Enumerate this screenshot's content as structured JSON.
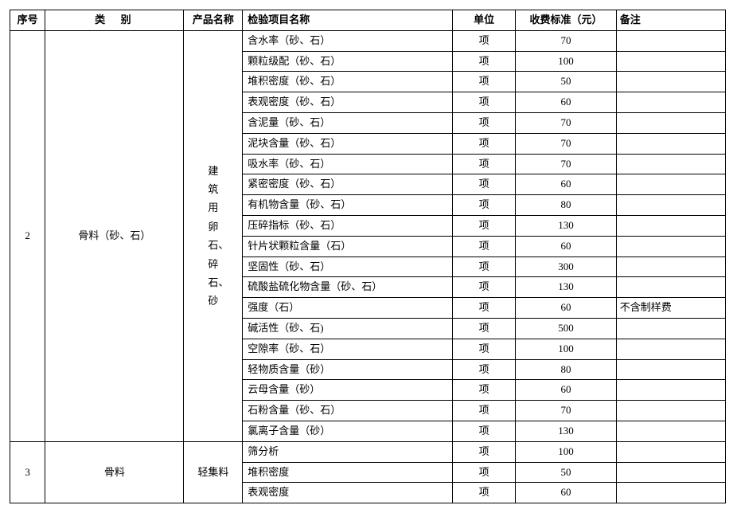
{
  "columns": {
    "seq": "序号",
    "category": "类别",
    "product": "产品名称",
    "item": "检验项目名称",
    "unit": "单位",
    "fee": "收费标准（元）",
    "note": "备注"
  },
  "groups": [
    {
      "seq": "2",
      "category": "骨料（砂、石）",
      "product": "建筑用卵石、碎石、砂",
      "product_vertical": true,
      "rows": [
        {
          "item": "含水率（砂、石）",
          "unit": "项",
          "fee": "70",
          "note": ""
        },
        {
          "item": "颗粒级配（砂、石）",
          "unit": "项",
          "fee": "100",
          "note": ""
        },
        {
          "item": "堆积密度（砂、石）",
          "unit": "项",
          "fee": "50",
          "note": ""
        },
        {
          "item": "表观密度（砂、石）",
          "unit": "项",
          "fee": "60",
          "note": ""
        },
        {
          "item": "含泥量（砂、石）",
          "unit": "项",
          "fee": "70",
          "note": ""
        },
        {
          "item": "泥块含量（砂、石）",
          "unit": "项",
          "fee": "70",
          "note": ""
        },
        {
          "item": "吸水率（砂、石）",
          "unit": "项",
          "fee": "70",
          "note": ""
        },
        {
          "item": "紧密密度（砂、石）",
          "unit": "项",
          "fee": "60",
          "note": ""
        },
        {
          "item": "有机物含量（砂、石）",
          "unit": "项",
          "fee": "80",
          "note": ""
        },
        {
          "item": "压碎指标（砂、石）",
          "unit": "项",
          "fee": "130",
          "note": ""
        },
        {
          "item": "针片状颗粒含量（石）",
          "unit": "项",
          "fee": "60",
          "note": ""
        },
        {
          "item": "坚固性（砂、石）",
          "unit": "项",
          "fee": "300",
          "note": ""
        },
        {
          "item": "硫酸盐硫化物含量（砂、石）",
          "unit": "项",
          "fee": "130",
          "note": ""
        },
        {
          "item": "强度（石）",
          "unit": "项",
          "fee": "60",
          "note": "不含制样费"
        },
        {
          "item": "碱活性（砂、石)",
          "unit": "项",
          "fee": "500",
          "note": ""
        },
        {
          "item": "空隙率（砂、石）",
          "unit": "项",
          "fee": "100",
          "note": ""
        },
        {
          "item": "轻物质含量（砂）",
          "unit": "项",
          "fee": "80",
          "note": ""
        },
        {
          "item": "云母含量（砂）",
          "unit": "项",
          "fee": "60",
          "note": ""
        },
        {
          "item": "石粉含量（砂、石）",
          "unit": "项",
          "fee": "70",
          "note": ""
        },
        {
          "item": "氯离子含量（砂）",
          "unit": "项",
          "fee": "130",
          "note": ""
        }
      ]
    },
    {
      "seq": "3",
      "category": "骨料",
      "product": "轻集料",
      "product_vertical": false,
      "rows": [
        {
          "item": "筛分析",
          "unit": "项",
          "fee": "100",
          "note": ""
        },
        {
          "item": "堆积密度",
          "unit": "项",
          "fee": "50",
          "note": ""
        },
        {
          "item": "表观密度",
          "unit": "项",
          "fee": "60",
          "note": ""
        }
      ]
    }
  ]
}
